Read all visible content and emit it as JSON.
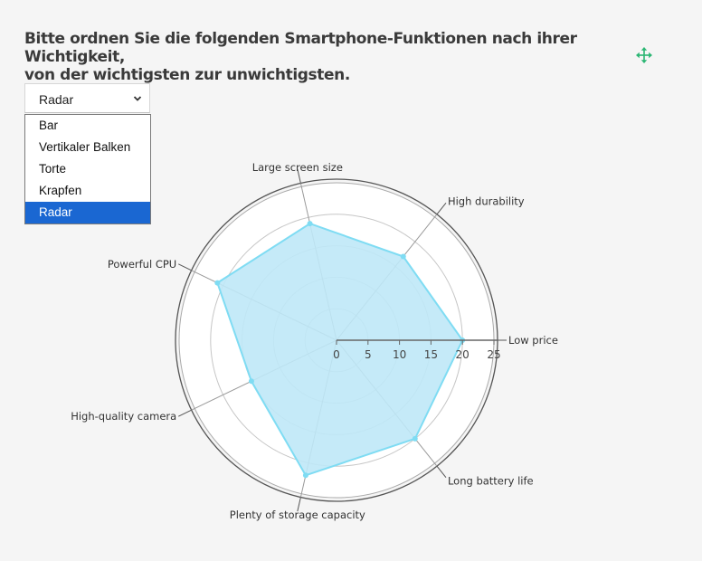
{
  "question": {
    "line1": "Bitte ordnen Sie die folgenden Smartphone-Funktionen nach ihrer Wichtigkeit,",
    "line2": "von der wichtigsten zur unwichtigsten."
  },
  "chart_selector": {
    "selected": "Radar",
    "options": [
      "Bar",
      "Vertikaler Balken",
      "Torte",
      "Krapfen",
      "Radar"
    ]
  },
  "colors": {
    "area_fill": "#bfe8f7",
    "area_stroke": "#7fdcf3",
    "accent": "#2bb673",
    "selected_option": "#1a67d2"
  },
  "icons": {
    "move": "move-arrows-icon",
    "dropdown": "chevron-down-icon"
  },
  "chart_data": {
    "type": "radar",
    "axes": [
      "Low price",
      "Long battery life",
      "Plenty of storage capacity",
      "High-quality camera",
      "Powerful CPU",
      "Large screen size",
      "High durability"
    ],
    "values": [
      20,
      20,
      22,
      15,
      21,
      19,
      17
    ],
    "scale_ticks": [
      0,
      5,
      10,
      15,
      20,
      25
    ],
    "rmax": 25,
    "grid": true
  }
}
